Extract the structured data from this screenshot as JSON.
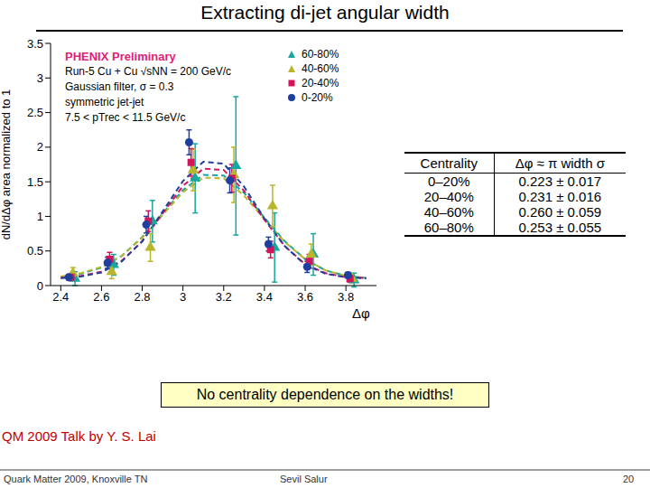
{
  "chart_data": {
    "type": "scatter",
    "title": "Extracting di-jet angular width",
    "x_label": "Δφ",
    "y_label": "dN/dΔφ area normalized to 1",
    "annotations": [
      {
        "text": "PHENIX Preliminary",
        "color": "#e0217a"
      },
      {
        "text": "Run-5 Cu + Cu √sNN = 200 GeV/c",
        "color": "#000000"
      },
      {
        "text": "Gaussian filter, σ = 0.3",
        "color": "#000000"
      },
      {
        "text": "symmetric jet-jet",
        "color": "#000000"
      },
      {
        "text": "7.5 < pTrec < 11.5 GeV/c",
        "color": "#000000"
      }
    ],
    "xlim": [
      2.35,
      3.95
    ],
    "xticks": [
      2.4,
      2.6,
      2.8,
      3,
      3.2,
      3.4,
      3.6,
      3.8
    ],
    "ylim": [
      0,
      3.5
    ],
    "yticks": [
      0,
      0.5,
      1,
      1.5,
      2,
      2.5,
      3,
      3.5
    ],
    "legend": "top-right",
    "grid": false,
    "fit_x": [
      2.4,
      2.5,
      2.6,
      2.7,
      2.8,
      2.9,
      3.0,
      3.1,
      3.2,
      3.3,
      3.4,
      3.5,
      3.6,
      3.7,
      3.8,
      3.9
    ],
    "series": [
      {
        "name": "60-80%",
        "color": "#17a6a0",
        "marker": "triangle",
        "line_style": "dashed",
        "x": [
          2.47,
          2.66,
          2.85,
          3.06,
          3.26,
          3.45,
          3.64,
          3.84
        ],
        "values": [
          0.1,
          0.3,
          0.93,
          1.55,
          1.73,
          0.55,
          0.45,
          0.08
        ],
        "errors": [
          0.1,
          0.15,
          0.3,
          0.5,
          1.0,
          0.5,
          0.3,
          0.1
        ],
        "fit": [
          0.12,
          0.17,
          0.26,
          0.43,
          0.7,
          1.04,
          1.38,
          1.6,
          1.59,
          1.34,
          0.98,
          0.64,
          0.38,
          0.22,
          0.14,
          0.11
        ]
      },
      {
        "name": "40-60%",
        "color": "#b8b62a",
        "marker": "triangle",
        "line_style": "dashed",
        "x": [
          2.46,
          2.65,
          2.84,
          3.05,
          3.25,
          3.44,
          3.63,
          3.83
        ],
        "values": [
          0.18,
          0.2,
          0.55,
          1.67,
          1.6,
          1.15,
          0.45,
          0.1
        ],
        "errors": [
          0.08,
          0.1,
          0.2,
          0.3,
          0.4,
          0.3,
          0.15,
          0.06
        ],
        "fit": [
          0.13,
          0.18,
          0.27,
          0.43,
          0.69,
          1.02,
          1.35,
          1.56,
          1.55,
          1.3,
          0.96,
          0.63,
          0.38,
          0.22,
          0.14,
          0.11
        ]
      },
      {
        "name": "20-40%",
        "color": "#d4145a",
        "marker": "square",
        "line_style": "dashed",
        "x": [
          2.45,
          2.64,
          2.83,
          3.04,
          3.24,
          3.43,
          3.62,
          3.82
        ],
        "values": [
          0.12,
          0.38,
          0.93,
          1.78,
          1.55,
          0.52,
          0.35,
          0.1
        ],
        "errors": [
          0.05,
          0.1,
          0.15,
          0.2,
          0.2,
          0.12,
          0.1,
          0.05
        ],
        "fit": [
          0.11,
          0.14,
          0.2,
          0.36,
          0.64,
          1.04,
          1.44,
          1.69,
          1.67,
          1.37,
          0.95,
          0.57,
          0.31,
          0.18,
          0.12,
          0.11
        ]
      },
      {
        "name": "0-20%",
        "color": "#1f3f9f",
        "marker": "circle",
        "line_style": "dashed",
        "x": [
          2.44,
          2.63,
          2.82,
          3.03,
          3.23,
          3.42,
          3.61,
          3.81
        ],
        "values": [
          0.12,
          0.33,
          0.88,
          2.07,
          1.52,
          0.6,
          0.27,
          0.15
        ],
        "errors": [
          0.04,
          0.08,
          0.12,
          0.18,
          0.18,
          0.1,
          0.08,
          0.04
        ],
        "fit": [
          0.107,
          0.13,
          0.19,
          0.35,
          0.64,
          1.07,
          1.51,
          1.79,
          1.76,
          1.43,
          0.97,
          0.57,
          0.3,
          0.17,
          0.12,
          0.105
        ]
      }
    ]
  },
  "slide": {
    "table": {
      "header": [
        "Centrality",
        "Δφ ≈ π width σ"
      ],
      "rows": [
        [
          "0–20%",
          "0.223 ± 0.017"
        ],
        [
          "20–40%",
          "0.231 ± 0.016"
        ],
        [
          "40–60%",
          "0.260 ± 0.059"
        ],
        [
          "60–80%",
          "0.253 ± 0.055"
        ]
      ]
    },
    "note": "No centrality dependence on the widths!",
    "credit": "QM 2009 Talk by Y. S. Lai",
    "footer": {
      "left": "Quark Matter 2009, Knoxville TN",
      "center": "Sevil Salur",
      "page": 20
    }
  }
}
